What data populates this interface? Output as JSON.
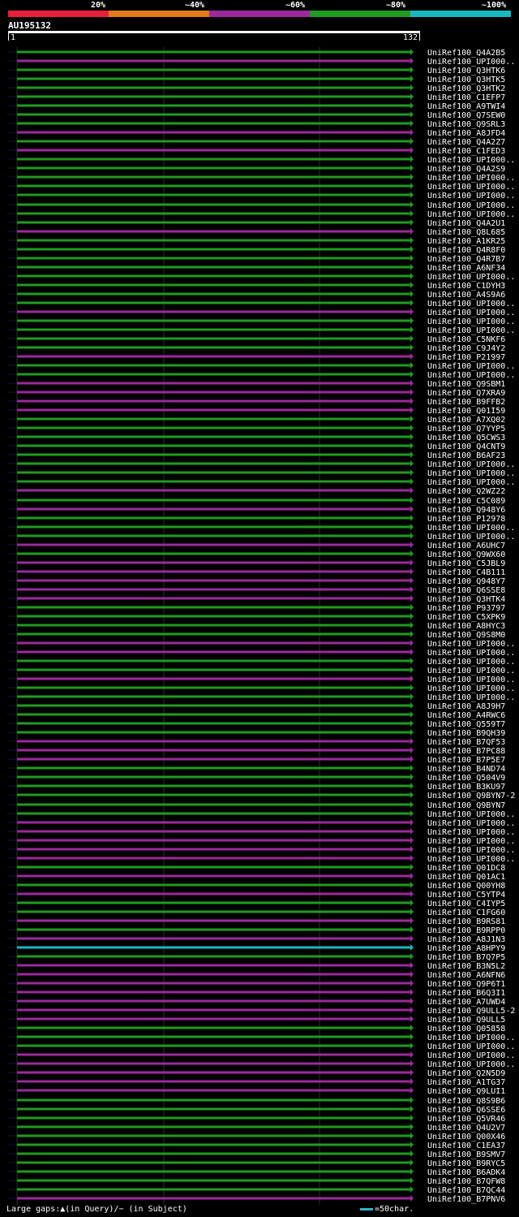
{
  "legend": {
    "labels": [
      "20%",
      "~40%",
      "~60%",
      "~80%",
      "~100%"
    ],
    "colors": [
      "#e8203a",
      "#e07a1a",
      "#9b2a9b",
      "#1f9b1f",
      "#18b8c0"
    ]
  },
  "query": {
    "title": "AU195132",
    "start": "1",
    "end": "132"
  },
  "hits": [
    {
      "id": "UniRef100_Q4A2B5",
      "c": "g"
    },
    {
      "id": "UniRef100_UPI000..",
      "c": "m"
    },
    {
      "id": "UniRef100_Q3HTK6",
      "c": "g"
    },
    {
      "id": "UniRef100_Q3HTK5",
      "c": "g"
    },
    {
      "id": "UniRef100_Q3HTK2",
      "c": "g"
    },
    {
      "id": "UniRef100_C1EFP7",
      "c": "g"
    },
    {
      "id": "UniRef100_A9TWI4",
      "c": "g"
    },
    {
      "id": "UniRef100_Q7SEW0",
      "c": "g"
    },
    {
      "id": "UniRef100_Q9SRL3",
      "c": "g"
    },
    {
      "id": "UniRef100_A8JFD4",
      "c": "m"
    },
    {
      "id": "UniRef100_Q4A2Z7",
      "c": "g"
    },
    {
      "id": "UniRef100_C1FED3",
      "c": "m"
    },
    {
      "id": "UniRef100_UPI000..",
      "c": "g"
    },
    {
      "id": "UniRef100_Q4A2S9",
      "c": "g"
    },
    {
      "id": "UniRef100_UPI000..",
      "c": "g"
    },
    {
      "id": "UniRef100_UPI000..",
      "c": "g"
    },
    {
      "id": "UniRef100_UPI000..",
      "c": "g"
    },
    {
      "id": "UniRef100_UPI000..",
      "c": "g"
    },
    {
      "id": "UniRef100_UPI000..",
      "c": "g"
    },
    {
      "id": "UniRef100_Q4A2U1",
      "c": "g"
    },
    {
      "id": "UniRef100_Q8L685",
      "c": "m"
    },
    {
      "id": "UniRef100_A1KR25",
      "c": "g"
    },
    {
      "id": "UniRef100_Q4R8F0",
      "c": "g"
    },
    {
      "id": "UniRef100_Q4R7B7",
      "c": "g"
    },
    {
      "id": "UniRef100_A6NF34",
      "c": "g"
    },
    {
      "id": "UniRef100_UPI000..",
      "c": "g"
    },
    {
      "id": "UniRef100_C1DYH3",
      "c": "g"
    },
    {
      "id": "UniRef100_A4S9A6",
      "c": "g"
    },
    {
      "id": "UniRef100_UPI000..",
      "c": "g"
    },
    {
      "id": "UniRef100_UPI000..",
      "c": "m"
    },
    {
      "id": "UniRef100_UPI000..",
      "c": "g"
    },
    {
      "id": "UniRef100_UPI000..",
      "c": "g"
    },
    {
      "id": "UniRef100_C5NKF6",
      "c": "g"
    },
    {
      "id": "UniRef100_C9J4Y2",
      "c": "g"
    },
    {
      "id": "UniRef100_P21997",
      "c": "m"
    },
    {
      "id": "UniRef100_UPI000..",
      "c": "g"
    },
    {
      "id": "UniRef100_UPI000..",
      "c": "g"
    },
    {
      "id": "UniRef100_Q9SBM1",
      "c": "m"
    },
    {
      "id": "UniRef100_Q7XRA9",
      "c": "m"
    },
    {
      "id": "UniRef100_B9FFB2",
      "c": "m"
    },
    {
      "id": "UniRef100_Q01I59",
      "c": "m"
    },
    {
      "id": "UniRef100_A7XQ02",
      "c": "g"
    },
    {
      "id": "UniRef100_Q7YYP5",
      "c": "g"
    },
    {
      "id": "UniRef100_Q5CWS3",
      "c": "g"
    },
    {
      "id": "UniRef100_Q4CNT9",
      "c": "g"
    },
    {
      "id": "UniRef100_B6AF23",
      "c": "g"
    },
    {
      "id": "UniRef100_UPI000..",
      "c": "g"
    },
    {
      "id": "UniRef100_UPI000..",
      "c": "g"
    },
    {
      "id": "UniRef100_UPI000..",
      "c": "g"
    },
    {
      "id": "UniRef100_Q2WZ22",
      "c": "m"
    },
    {
      "id": "UniRef100_C5C089",
      "c": "g"
    },
    {
      "id": "UniRef100_Q948Y6",
      "c": "m"
    },
    {
      "id": "UniRef100_P12978",
      "c": "g"
    },
    {
      "id": "UniRef100_UPI000..",
      "c": "g"
    },
    {
      "id": "UniRef100_UPI000..",
      "c": "g"
    },
    {
      "id": "UniRef100_A6UHC7",
      "c": "m"
    },
    {
      "id": "UniRef100_Q9WX60",
      "c": "g"
    },
    {
      "id": "UniRef100_C5JBL9",
      "c": "m"
    },
    {
      "id": "UniRef100_C4B111",
      "c": "m"
    },
    {
      "id": "UniRef100_Q948Y7",
      "c": "m"
    },
    {
      "id": "UniRef100_Q6SSE8",
      "c": "m"
    },
    {
      "id": "UniRef100_Q3HTK4",
      "c": "m"
    },
    {
      "id": "UniRef100_P93797",
      "c": "g"
    },
    {
      "id": "UniRef100_C5XPK9",
      "c": "g"
    },
    {
      "id": "UniRef100_A8HYC3",
      "c": "g"
    },
    {
      "id": "UniRef100_Q9S8M0",
      "c": "g"
    },
    {
      "id": "UniRef100_UPI000..",
      "c": "m"
    },
    {
      "id": "UniRef100_UPI000..",
      "c": "m"
    },
    {
      "id": "UniRef100_UPI000..",
      "c": "g"
    },
    {
      "id": "UniRef100_UPI000..",
      "c": "g"
    },
    {
      "id": "UniRef100_UPI000..",
      "c": "m"
    },
    {
      "id": "UniRef100_UPI000..",
      "c": "g"
    },
    {
      "id": "UniRef100_UPI000..",
      "c": "g"
    },
    {
      "id": "UniRef100_A8J9H7",
      "c": "g"
    },
    {
      "id": "UniRef100_A4RWC6",
      "c": "g"
    },
    {
      "id": "UniRef100_Q559T7",
      "c": "g"
    },
    {
      "id": "UniRef100_B9QH39",
      "c": "g"
    },
    {
      "id": "UniRef100_B7QF53",
      "c": "m"
    },
    {
      "id": "UniRef100_B7PC88",
      "c": "m"
    },
    {
      "id": "UniRef100_B7P5E7",
      "c": "m"
    },
    {
      "id": "UniRef100_B4ND74",
      "c": "g"
    },
    {
      "id": "UniRef100_Q504V9",
      "c": "g"
    },
    {
      "id": "UniRef100_B3KU97",
      "c": "g"
    },
    {
      "id": "UniRef100_Q9BYN7-2",
      "c": "g"
    },
    {
      "id": "UniRef100_Q9BYN7",
      "c": "g"
    },
    {
      "id": "UniRef100_UPI000..",
      "c": "g"
    },
    {
      "id": "UniRef100_UPI000..",
      "c": "m"
    },
    {
      "id": "UniRef100_UPI000..",
      "c": "m"
    },
    {
      "id": "UniRef100_UPI000..",
      "c": "m"
    },
    {
      "id": "UniRef100_UPI000..",
      "c": "m"
    },
    {
      "id": "UniRef100_UPI000..",
      "c": "m"
    },
    {
      "id": "UniRef100_Q01DC8",
      "c": "g"
    },
    {
      "id": "UniRef100_Q01AC1",
      "c": "m"
    },
    {
      "id": "UniRef100_Q00YH8",
      "c": "g"
    },
    {
      "id": "UniRef100_C5YTP4",
      "c": "m"
    },
    {
      "id": "UniRef100_C4IYP5",
      "c": "g"
    },
    {
      "id": "UniRef100_C1FG60",
      "c": "g"
    },
    {
      "id": "UniRef100_B9RS81",
      "c": "m"
    },
    {
      "id": "UniRef100_B9RPP0",
      "c": "g"
    },
    {
      "id": "UniRef100_A8J1N3",
      "c": "m"
    },
    {
      "id": "UniRef100_A8HPY9",
      "c": "c"
    },
    {
      "id": "UniRef100_B7Q7P5",
      "c": "g"
    },
    {
      "id": "UniRef100_B3N5L2",
      "c": "m"
    },
    {
      "id": "UniRef100_A6NFN6",
      "c": "m"
    },
    {
      "id": "UniRef100_Q9P6T1",
      "c": "m"
    },
    {
      "id": "UniRef100_B6Q3I1",
      "c": "m"
    },
    {
      "id": "UniRef100_A7UWD4",
      "c": "m"
    },
    {
      "id": "UniRef100_Q9ULL5-2",
      "c": "m"
    },
    {
      "id": "UniRef100_Q9ULL5",
      "c": "m"
    },
    {
      "id": "UniRef100_Q05858",
      "c": "g"
    },
    {
      "id": "UniRef100_UPI000..",
      "c": "g"
    },
    {
      "id": "UniRef100_UPI000..",
      "c": "g"
    },
    {
      "id": "UniRef100_UPI000..",
      "c": "m"
    },
    {
      "id": "UniRef100_UPI000..",
      "c": "m"
    },
    {
      "id": "UniRef100_Q2N5D9",
      "c": "m"
    },
    {
      "id": "UniRef100_A1TG37",
      "c": "m"
    },
    {
      "id": "UniRef100_Q9LUI1",
      "c": "m"
    },
    {
      "id": "UniRef100_Q8S9B6",
      "c": "g"
    },
    {
      "id": "UniRef100_Q6SSE6",
      "c": "g"
    },
    {
      "id": "UniRef100_Q5VR46",
      "c": "g"
    },
    {
      "id": "UniRef100_Q4U2V7",
      "c": "g"
    },
    {
      "id": "UniRef100_Q00X46",
      "c": "g"
    },
    {
      "id": "UniRef100_C1EA37",
      "c": "g"
    },
    {
      "id": "UniRef100_B9SMV7",
      "c": "g"
    },
    {
      "id": "UniRef100_B9RYC5",
      "c": "g"
    },
    {
      "id": "UniRef100_B6ADK4",
      "c": "g"
    },
    {
      "id": "UniRef100_B7QFW8",
      "c": "g"
    },
    {
      "id": "UniRef100_B7QC44",
      "c": "g"
    },
    {
      "id": "UniRef100_B7PNV6",
      "c": "m"
    }
  ],
  "footer": {
    "gaps_text": "Large gaps:▲(in Query)/− (in Subject)",
    "scale_text": "=50char."
  },
  "colors": {
    "g": "#1f9b1f",
    "m": "#9b2a9b",
    "c": "#18b8c0",
    "axis": "#ffffff",
    "grid": "#1b3a1b"
  }
}
